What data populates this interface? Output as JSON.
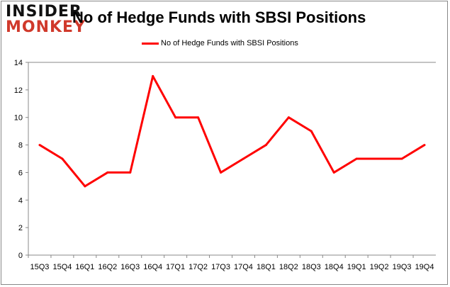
{
  "logo": {
    "line1": "INSIDER",
    "line2": "MONKEY"
  },
  "chart_data": {
    "type": "line",
    "title": "No of Hedge Funds with SBSI Positions",
    "categories": [
      "15Q3",
      "15Q4",
      "16Q1",
      "16Q2",
      "16Q3",
      "16Q4",
      "17Q1",
      "17Q2",
      "17Q3",
      "17Q4",
      "18Q1",
      "18Q2",
      "18Q3",
      "18Q4",
      "19Q1",
      "19Q2",
      "19Q3",
      "19Q4"
    ],
    "series": [
      {
        "name": "No of Hedge Funds with SBSI Positions",
        "color": "#ff0000",
        "values": [
          8,
          7,
          5,
          6,
          6,
          13,
          10,
          10,
          6,
          7,
          8,
          10,
          9,
          6,
          7,
          7,
          7,
          8
        ]
      }
    ],
    "ylim": [
      0,
      14
    ],
    "yticks": [
      0,
      2,
      4,
      6,
      8,
      10,
      12,
      14
    ],
    "xlabel": "",
    "ylabel": "",
    "grid": false,
    "legend": "top-center"
  }
}
